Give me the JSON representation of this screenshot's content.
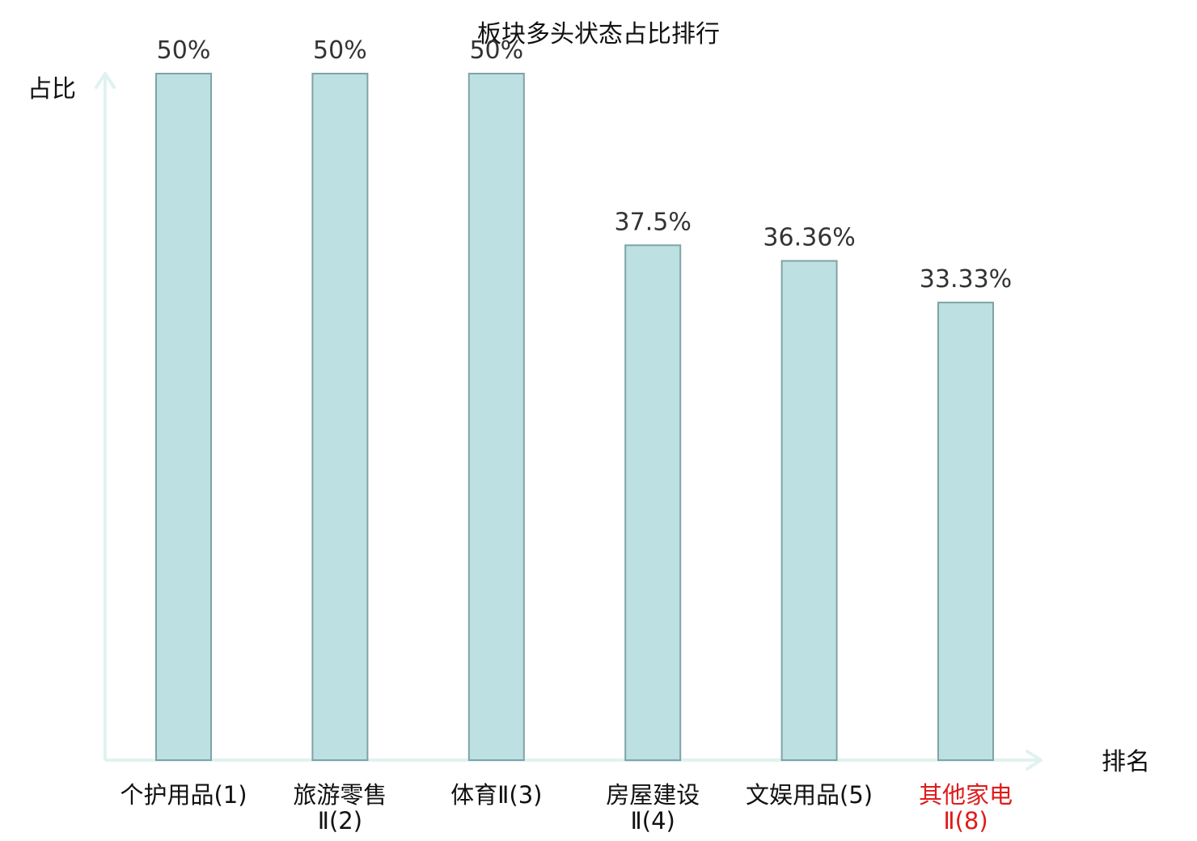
{
  "chart_data": {
    "type": "bar",
    "title": "板块多头状态占比排行",
    "xlabel": "排名",
    "ylabel": "占比",
    "ylim": [
      0,
      50
    ],
    "grid": false,
    "categories": [
      [
        "个护用品(1)"
      ],
      [
        "旅游零售",
        "Ⅱ(2)"
      ],
      [
        "体育Ⅱ(3)"
      ],
      [
        "房屋建设",
        "Ⅱ(4)"
      ],
      [
        "文娱用品(5)"
      ],
      [
        "其他家电",
        "Ⅱ(8)"
      ]
    ],
    "values": [
      50,
      50,
      50,
      37.5,
      36.36,
      33.33
    ],
    "value_labels": [
      "50%",
      "50%",
      "50%",
      "37.5%",
      "36.36%",
      "33.33%"
    ],
    "highlighted_category_index": 5,
    "colors": {
      "bar_fill": "#bde0e2",
      "bar_stroke": "#7fa3a6",
      "axis": "#e0f2f0",
      "label_default": "#111111",
      "label_highlight": "#e01b1b",
      "value_label": "#333333"
    }
  }
}
